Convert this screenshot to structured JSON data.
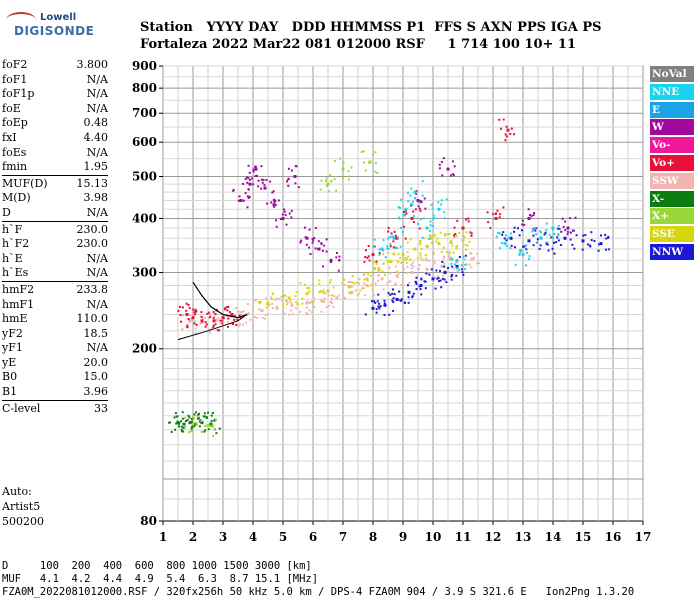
{
  "logo": {
    "line1": "Lowell",
    "line2": "DIGISONDE"
  },
  "header": {
    "row1": "Station   YYYY DAY   DDD HHMMSS P1  FFS S AXN PPS IGA PS",
    "row2": "Fortaleza 2022 Mar22 081 012000 RSF     1 714 100 10+ 11"
  },
  "params": [
    [
      {
        "label": "foF2",
        "value": "3.800"
      },
      {
        "label": "foF1",
        "value": "N/A"
      },
      {
        "label": "foF1p",
        "value": "N/A"
      },
      {
        "label": "foE",
        "value": "N/A"
      },
      {
        "label": "foEp",
        "value": "0.48"
      },
      {
        "label": "fxI",
        "value": "4.40"
      },
      {
        "label": "foEs",
        "value": "N/A"
      },
      {
        "label": "fmin",
        "value": "1.95"
      }
    ],
    [
      {
        "label": "MUF(D)",
        "value": "15.13"
      },
      {
        "label": "M(D)",
        "value": "3.98"
      },
      {
        "label": "D",
        "value": "N/A"
      }
    ],
    [
      {
        "label": "h`F",
        "value": "230.0"
      },
      {
        "label": "h`F2",
        "value": "230.0"
      },
      {
        "label": "h`E",
        "value": "N/A"
      },
      {
        "label": "h`Es",
        "value": "N/A"
      }
    ],
    [
      {
        "label": "hmF2",
        "value": "233.8"
      },
      {
        "label": "hmF1",
        "value": "N/A"
      },
      {
        "label": "hmE",
        "value": "110.0"
      },
      {
        "label": "yF2",
        "value": "18.5"
      },
      {
        "label": "yF1",
        "value": "N/A"
      },
      {
        "label": "yE",
        "value": "20.0"
      },
      {
        "label": "B0",
        "value": "15.0"
      },
      {
        "label": "B1",
        "value": "3.96"
      }
    ],
    [
      {
        "label": "C-level",
        "value": "33"
      }
    ]
  ],
  "auto": {
    "line1": "Auto:",
    "line2": "Artist5",
    "line3": "500200"
  },
  "footer": {
    "line1": "D     100  200  400  600  800 1000 1500 3000 [km]",
    "line2": "MUF   4.1  4.2  4.4  4.9  5.4  6.3  8.7 15.1 [MHz]",
    "line3": "FZA0M_2022081012000.RSF / 320fx256h 50 kHz 5.0 km / DPS-4 FZA0M 904 / 3.9 S 321.6 E   Ion2Png 1.3.20"
  },
  "legend": [
    {
      "label": "NoVal",
      "color": "#808080"
    },
    {
      "label": "NNE",
      "color": "#19d4f0"
    },
    {
      "label": "E",
      "color": "#1aa3e6"
    },
    {
      "label": "W",
      "color": "#a0089e"
    },
    {
      "label": "Vo-",
      "color": "#f0189a"
    },
    {
      "label": "Vo+",
      "color": "#e6103a"
    },
    {
      "label": "SSW",
      "color": "#f2b4ae"
    },
    {
      "label": "X-",
      "color": "#0b7d10"
    },
    {
      "label": "X+",
      "color": "#9ad83a"
    },
    {
      "label": "SSE",
      "color": "#d6d60e"
    },
    {
      "label": "NNW",
      "color": "#1c18d8"
    }
  ],
  "chart_data": {
    "type": "scatter",
    "xlabel": "",
    "ylabel": "",
    "xlim": [
      1,
      17
    ],
    "ylim": [
      80,
      900
    ],
    "xticks": [
      "1",
      "2",
      "3",
      "4",
      "5",
      "6",
      "7",
      "8",
      "9",
      "10",
      "11",
      "12",
      "13",
      "14",
      "15",
      "16",
      "17"
    ],
    "yticks": [
      "80",
      "200",
      "300",
      "400",
      "500",
      "600",
      "700",
      "800",
      "900"
    ],
    "y_scale": "log",
    "grid": true,
    "legend_position": "right",
    "series": [
      {
        "name": "SSW",
        "color": "#f2b4ae",
        "points": [
          [
            1.9,
            232
          ],
          [
            2.3,
            230
          ],
          [
            2.8,
            233
          ],
          [
            3.3,
            238
          ],
          [
            3.8,
            240
          ],
          [
            4.3,
            245
          ],
          [
            4.8,
            248
          ],
          [
            5.3,
            252
          ],
          [
            5.8,
            255
          ],
          [
            6.3,
            258
          ],
          [
            6.8,
            262
          ],
          [
            7.3,
            270
          ],
          [
            7.8,
            280
          ],
          [
            8.3,
            290
          ],
          [
            8.8,
            295
          ],
          [
            9.3,
            300
          ],
          [
            9.8,
            305
          ],
          [
            10.3,
            310
          ],
          [
            10.8,
            318
          ],
          [
            11.3,
            322
          ]
        ]
      },
      {
        "name": "SSE",
        "color": "#d6d60e",
        "points": [
          [
            4.5,
            255
          ],
          [
            5.2,
            262
          ],
          [
            5.8,
            268
          ],
          [
            6.5,
            272
          ],
          [
            7.2,
            278
          ],
          [
            7.8,
            290
          ],
          [
            8.2,
            305
          ],
          [
            8.6,
            318
          ],
          [
            9.0,
            330
          ],
          [
            9.4,
            340
          ],
          [
            9.8,
            345
          ],
          [
            10.2,
            350
          ],
          [
            10.6,
            352
          ],
          [
            11.0,
            356
          ]
        ]
      },
      {
        "name": "NNW",
        "color": "#1c18d8",
        "points": [
          [
            8.0,
            248
          ],
          [
            8.4,
            252
          ],
          [
            8.8,
            260
          ],
          [
            9.2,
            270
          ],
          [
            9.6,
            280
          ],
          [
            10.0,
            290
          ],
          [
            10.4,
            300
          ],
          [
            10.8,
            310
          ],
          [
            12.6,
            360
          ],
          [
            13.2,
            355
          ],
          [
            13.8,
            350
          ],
          [
            14.4,
            360
          ],
          [
            15.0,
            355
          ],
          [
            15.6,
            350
          ]
        ]
      },
      {
        "name": "Vo+",
        "color": "#e6103a",
        "points": [
          [
            1.8,
            240
          ],
          [
            2.0,
            236
          ],
          [
            2.3,
            232
          ],
          [
            2.7,
            232
          ],
          [
            3.0,
            236
          ],
          [
            3.3,
            240
          ],
          [
            8.0,
            330
          ],
          [
            8.8,
            360
          ],
          [
            9.3,
            400
          ],
          [
            11.0,
            380
          ],
          [
            12.1,
            400
          ],
          [
            12.5,
            640
          ]
        ]
      },
      {
        "name": "W",
        "color": "#a0089e",
        "points": [
          [
            3.6,
            440
          ],
          [
            3.9,
            480
          ],
          [
            4.1,
            520
          ],
          [
            4.4,
            470
          ],
          [
            4.7,
            430
          ],
          [
            5.0,
            400
          ],
          [
            5.4,
            500
          ],
          [
            5.8,
            360
          ],
          [
            6.2,
            340
          ],
          [
            6.6,
            320
          ],
          [
            9.5,
            440
          ],
          [
            10.5,
            520
          ],
          [
            13.2,
            400
          ],
          [
            14.5,
            380
          ]
        ]
      },
      {
        "name": "NNE",
        "color": "#19d4f0",
        "points": [
          [
            8.3,
            340
          ],
          [
            8.7,
            360
          ],
          [
            9.1,
            420
          ],
          [
            9.4,
            460
          ],
          [
            9.8,
            380
          ],
          [
            10.2,
            420
          ],
          [
            10.8,
            320
          ],
          [
            12.4,
            350
          ],
          [
            13.0,
            330
          ],
          [
            13.6,
            360
          ],
          [
            14.0,
            380
          ]
        ]
      },
      {
        "name": "X-",
        "color": "#0b7d10",
        "points": [
          [
            1.5,
            135
          ],
          [
            1.7,
            134
          ],
          [
            1.9,
            135
          ],
          [
            2.1,
            134
          ],
          [
            2.3,
            135
          ],
          [
            2.6,
            134
          ]
        ]
      },
      {
        "name": "X+",
        "color": "#9ad83a",
        "points": [
          [
            2.0,
            134
          ],
          [
            2.5,
            133
          ],
          [
            6.5,
            480
          ],
          [
            7.0,
            520
          ],
          [
            7.9,
            540
          ]
        ]
      }
    ],
    "profile_curve": [
      [
        2.0,
        285
      ],
      [
        2.3,
        265
      ],
      [
        2.6,
        250
      ],
      [
        3.0,
        240
      ],
      [
        3.5,
        236
      ],
      [
        3.8,
        240
      ]
    ],
    "profile_lower": [
      [
        1.5,
        210
      ],
      [
        2.5,
        220
      ],
      [
        3.5,
        232
      ],
      [
        3.8,
        240
      ]
    ]
  }
}
